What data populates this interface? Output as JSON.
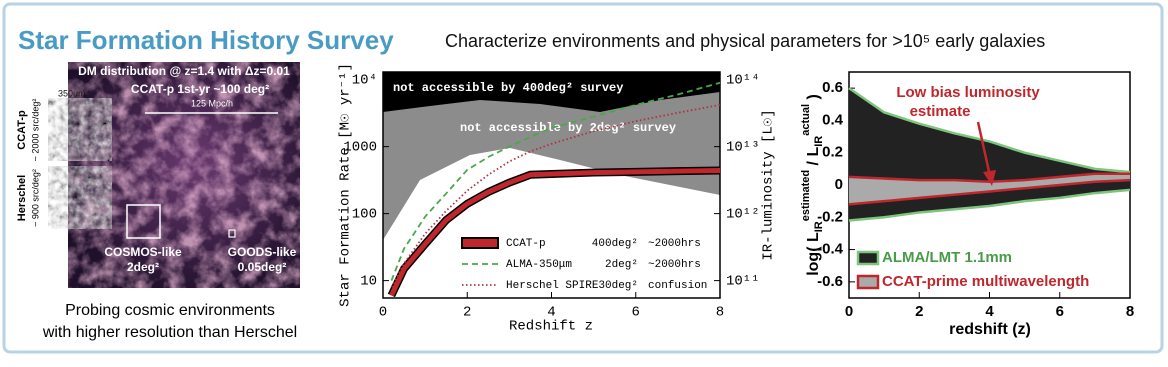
{
  "header": {
    "title": "Star Formation History Survey",
    "subtitle": "Characterize environments and physical parameters for >10⁵ early galaxies"
  },
  "left_panel": {
    "header": "DM distribution @ z=1.4 with Δz=0.01",
    "survey": "CCAT-p 1st-yr ~100 deg²",
    "scale": "125 Mpc/h",
    "inset_size": "350um",
    "insets": [
      {
        "name": "CCAT-p",
        "density": "~ 2000 src/deg²"
      },
      {
        "name": "Herschel",
        "density": "~ 900 src/deg²"
      }
    ],
    "fields": [
      {
        "name": "COSMOS-like",
        "area": "2deg²"
      },
      {
        "name": "GOODS-like",
        "area": "0.05deg²"
      }
    ],
    "caption": [
      "Probing cosmic environments",
      "with higher resolution than Herschel"
    ]
  },
  "chart_data": [
    {
      "type": "line",
      "xlabel": "Redshift z",
      "ylabel": "Star Formation Rate [M☉ yr⁻¹]",
      "y2label": "IR-luminosity [L☉]",
      "log": true,
      "x": [
        0.2,
        0.5,
        1,
        1.5,
        2,
        2.5,
        3,
        3.5,
        4,
        5,
        6,
        7,
        8
      ],
      "xlim": [
        0,
        8
      ],
      "xticks": [
        0,
        2,
        4,
        6,
        8
      ],
      "ylim": [
        5.5,
        13000
      ],
      "yticks": [
        10,
        100,
        1000,
        {
          "value": 10000,
          "label": "10⁴"
        }
      ],
      "y2lim": [
        55000000000.0,
        130000000000000.0
      ],
      "y2ticks": [
        {
          "value": 100000000000.0,
          "label": "10¹¹"
        },
        {
          "value": 1000000000000.0,
          "label": "10¹²"
        },
        {
          "value": 10000000000000.0,
          "label": "10¹³"
        },
        {
          "value": 100000000000000.0,
          "label": "10¹⁴"
        }
      ],
      "annotations": [
        "not accessible by 400deg² survey",
        "not accessible by 2deg² survey"
      ],
      "series": [
        {
          "name": "CCAT-p",
          "area": "400deg²",
          "time": "~2000hrs",
          "color": "#c0272d",
          "style": "thick",
          "values": [
            6,
            15,
            35,
            80,
            140,
            210,
            290,
            380,
            390,
            410,
            420,
            430,
            440
          ]
        },
        {
          "name": "ALMA-350μm",
          "area": "2deg²",
          "time": "~2000hrs",
          "color": "#4aa84a",
          "style": "dashed",
          "values": [
            10,
            30,
            90,
            200,
            450,
            700,
            1000,
            1400,
            1900,
            2800,
            4200,
            6000,
            9000
          ]
        },
        {
          "name": "Herschel SPIRE",
          "area": "30deg²",
          "time": "confusion",
          "color": "#b03040",
          "style": "dotted",
          "values": [
            8,
            18,
            50,
            110,
            220,
            380,
            600,
            850,
            1100,
            1700,
            2400,
            3200,
            4200
          ]
        }
      ]
    },
    {
      "type": "area",
      "xlabel": "redshift (z)",
      "ylabel": [
        "log( L",
        "IR",
        "estimated",
        " / L",
        "IR",
        "actual",
        " )"
      ],
      "x": [
        0,
        1,
        2,
        3,
        4,
        5,
        6,
        7,
        8
      ],
      "xlim": [
        0,
        8
      ],
      "xticks": [
        0,
        2,
        4,
        6,
        8
      ],
      "ylim": [
        -0.7,
        0.7
      ],
      "yticks": [
        -0.6,
        -0.4,
        -0.2,
        0.0,
        0.2,
        0.4,
        0.6
      ],
      "annotations": [
        "Low bias luminosity",
        "estimate"
      ],
      "series": [
        {
          "name": "ALMA/LMT 1.1mm",
          "color": "#7dc47d",
          "fill": "#222222",
          "upper": [
            0.6,
            0.45,
            0.38,
            0.32,
            0.27,
            0.2,
            0.15,
            0.1,
            0.08
          ],
          "lower": [
            -0.22,
            -0.2,
            -0.17,
            -0.15,
            -0.13,
            -0.1,
            -0.08,
            -0.05,
            -0.03
          ]
        },
        {
          "name": "CCAT-prime multiwavelength",
          "color": "#c0272d",
          "fill": "#aaaaaa",
          "upper": [
            0.05,
            0.04,
            0.03,
            0.03,
            0.02,
            0.03,
            0.05,
            0.07,
            0.07
          ],
          "lower": [
            -0.12,
            -0.1,
            -0.08,
            -0.06,
            -0.04,
            -0.02,
            0.0,
            0.02,
            0.03
          ]
        }
      ]
    }
  ]
}
